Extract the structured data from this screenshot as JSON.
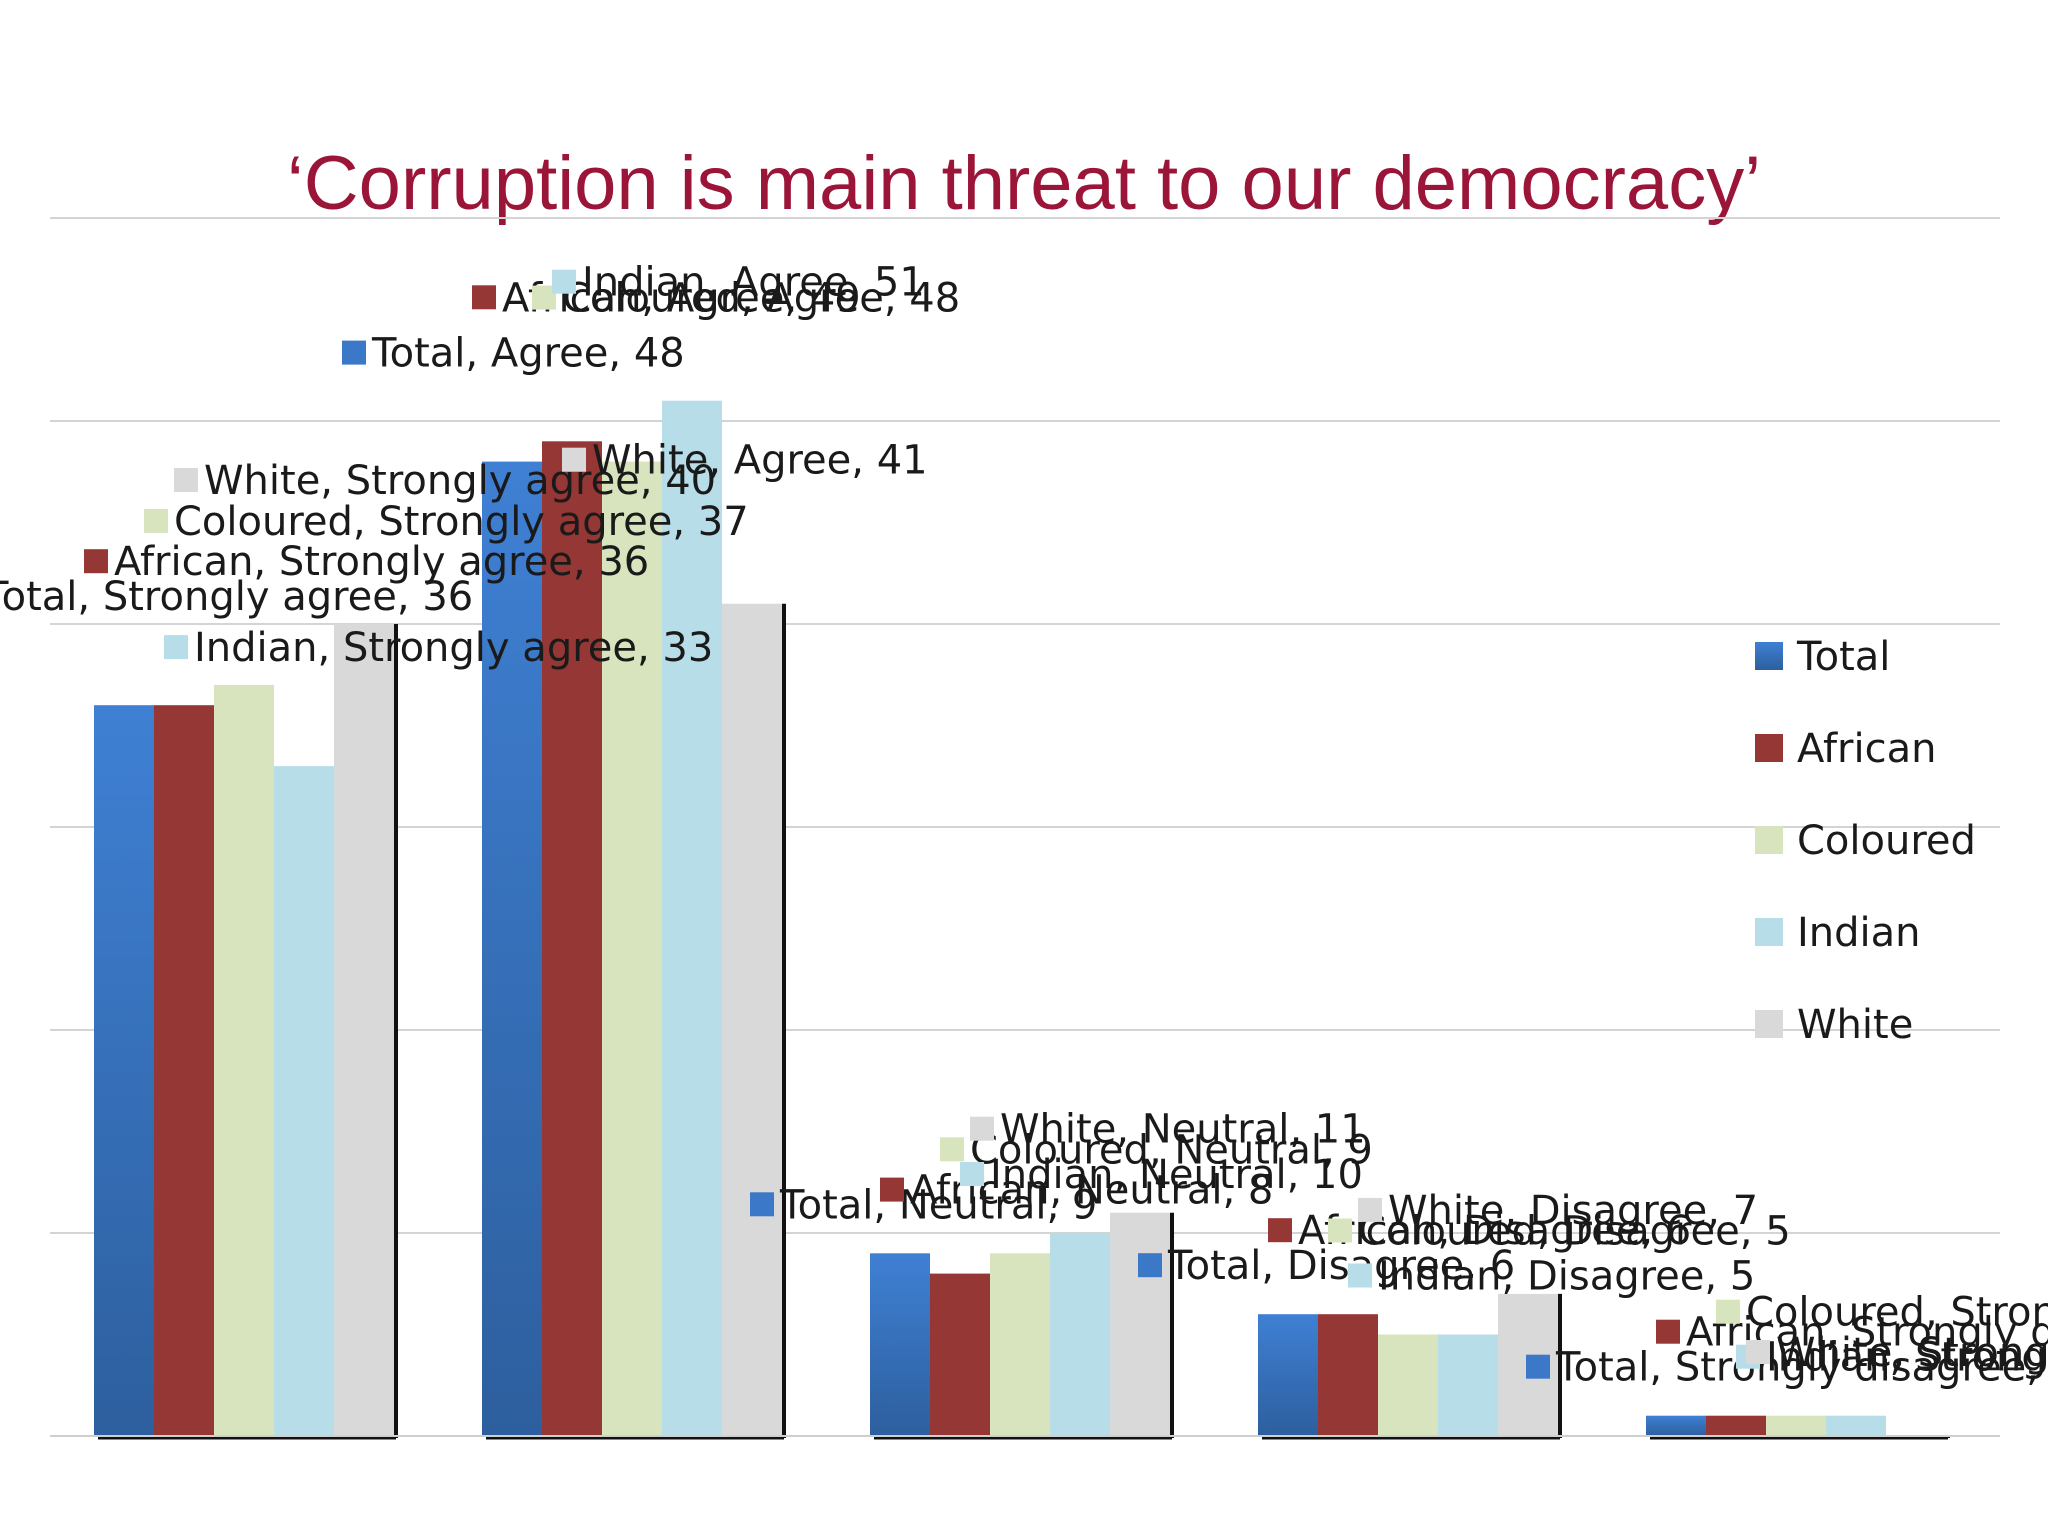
{
  "title": "‘Corruption is main threat to our democracy’",
  "chart_data": {
    "type": "bar",
    "categories": [
      "Strongly agree",
      "Agree",
      "Neutral",
      "Disagree",
      "Strongly disagree"
    ],
    "label_categories": [
      "Strongly agree",
      "Agree",
      "Neutral",
      "Disagree",
      "Strongly disagree"
    ],
    "ylim": [
      0,
      60
    ],
    "grid": true,
    "legend_position": "right",
    "series": [
      {
        "name": "Total",
        "color": "#3b78c8",
        "values": [
          36,
          48,
          9,
          6,
          1
        ]
      },
      {
        "name": "African",
        "color": "#953735",
        "values": [
          36,
          49,
          8,
          6,
          1
        ]
      },
      {
        "name": "Coloured",
        "color": "#d7e4bd",
        "values": [
          37,
          48,
          9,
          5,
          1
        ]
      },
      {
        "name": "Indian",
        "color": "#b7dee8",
        "values": [
          33,
          51,
          10,
          5,
          1
        ]
      },
      {
        "name": "White",
        "color": "#d9d9d9",
        "values": [
          40,
          41,
          11,
          7,
          0
        ]
      }
    ]
  }
}
